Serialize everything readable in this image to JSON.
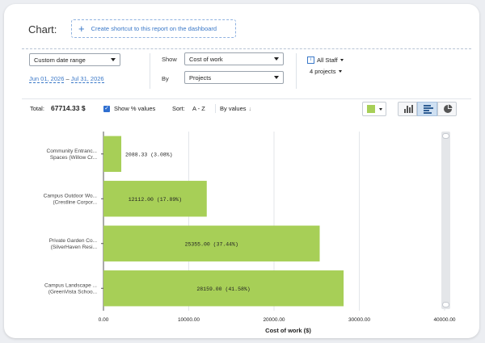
{
  "header": {
    "title": "Chart:",
    "shortcut_label": "Create shortcut to this report on the dashboard"
  },
  "filters": {
    "date_range": "Custom date range",
    "date_from": "Jun 01, 2026",
    "date_sep": "–",
    "date_to": "Jul 31, 2026",
    "show_label": "Show",
    "show_value": "Cost of work",
    "by_label": "By",
    "by_value": "Projects",
    "staff": "All Staff",
    "projects": "4 projects"
  },
  "summary": {
    "total_label": "Total:",
    "total_value": "67714.33 $",
    "show_percent_label": "Show % values",
    "sort_label": "Sort:",
    "sort_value": "A - Z",
    "by_values": "By values"
  },
  "colors": {
    "bar": "#a7cf57",
    "accent": "#3a78c8"
  },
  "chart_data": {
    "type": "bar",
    "orientation": "horizontal",
    "categories": [
      [
        "Community Entranc...",
        "Spaces (Willow Cr..."
      ],
      [
        "Campus Outdoor Wo...",
        "(Crestline Corpor..."
      ],
      [
        "Private Garden Co...",
        "(SilverHaven Resi..."
      ],
      [
        "Campus Landscape ...",
        "(GreenVista Schoo..."
      ]
    ],
    "values": [
      2088.33,
      12112.0,
      25355.0,
      28159.0
    ],
    "data_labels": [
      "2088.33 (3.08%)",
      "12112.00 (17.89%)",
      "25355.00 (37.44%)",
      "28159.00 (41.58%)"
    ],
    "xlabel": "Cost of work ($)",
    "xlim": [
      0,
      40000
    ],
    "xticks": [
      "0.00",
      "10000.00",
      "20000.00",
      "30000.00",
      "40000.00"
    ],
    "grid": true
  }
}
